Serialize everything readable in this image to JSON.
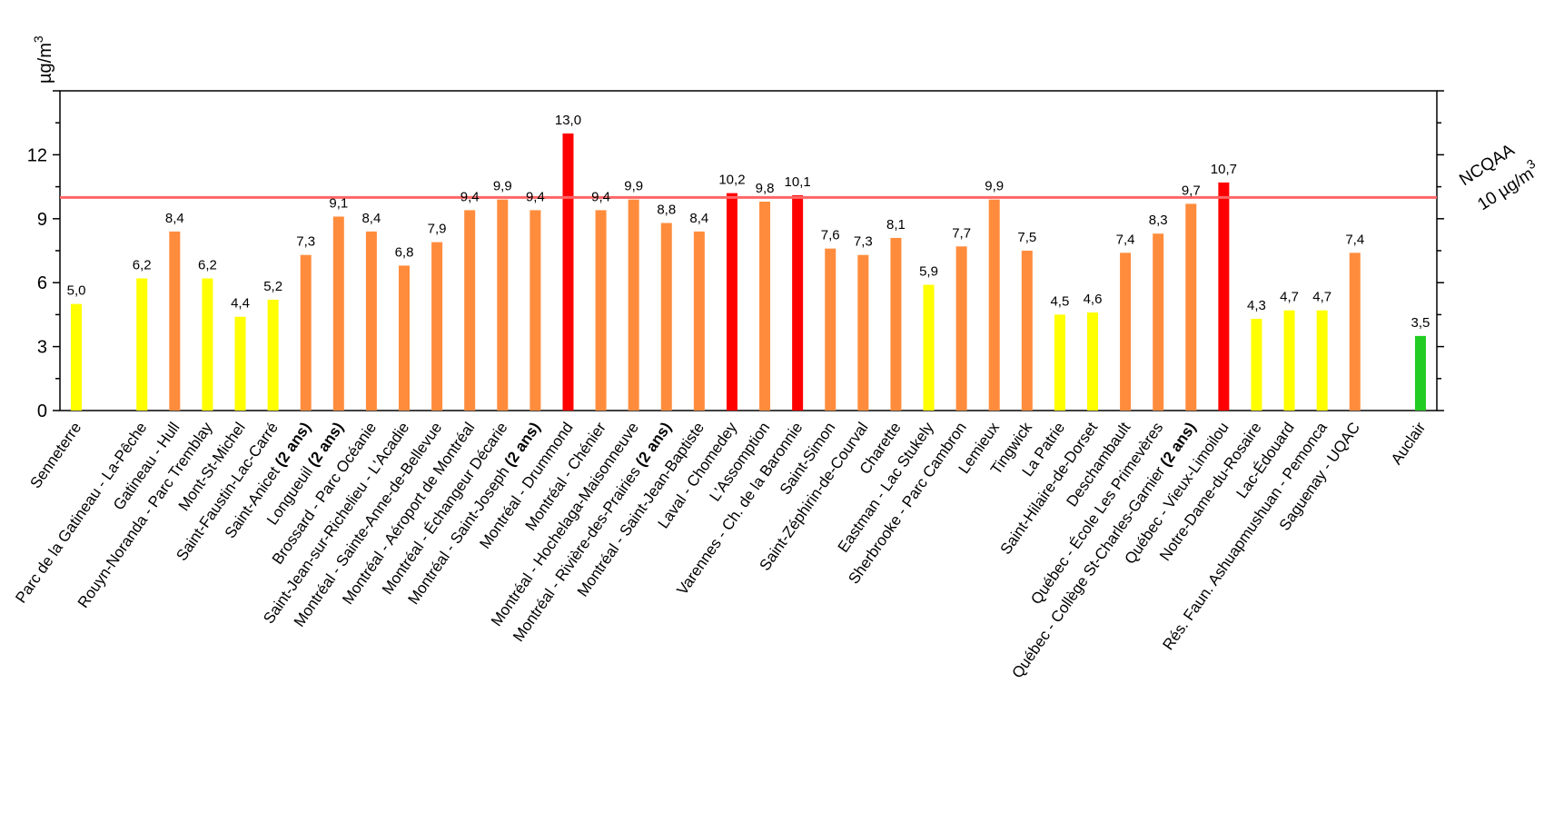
{
  "chart_data": {
    "type": "bar",
    "ylabel": "µg/m",
    "ylabel_sup": "3",
    "ylim": [
      0,
      15
    ],
    "yticks": [
      "0",
      "3",
      "6",
      "9",
      "12"
    ],
    "reference_line": {
      "value": 10,
      "color": "#ff6666",
      "label1": "NCQAA",
      "label2": "10 µg/m",
      "label2_sup": "3"
    },
    "colors": {
      "yellow": "#ffff00",
      "orange": "#ff8c3c",
      "red": "#ff0000",
      "green": "#22cc22"
    },
    "categories": [
      {
        "name": "Senneterre",
        "value": 5.0,
        "label": "5,0",
        "color": "yellow"
      },
      {
        "name": "",
        "value": null,
        "label": "",
        "color": ""
      },
      {
        "name": "Parc de la Gatineau - La-Pêche",
        "value": 6.2,
        "label": "6,2",
        "color": "yellow"
      },
      {
        "name": "Gatineau - Hull",
        "value": 8.4,
        "label": "8,4",
        "color": "orange"
      },
      {
        "name": "Rouyn-Noranda - Parc Tremblay",
        "value": 6.2,
        "label": "6,2",
        "color": "yellow"
      },
      {
        "name": "Mont-St-Michel",
        "value": 4.4,
        "label": "4,4",
        "color": "yellow"
      },
      {
        "name": "Saint-Faustin-Lac-Carré",
        "value": 5.2,
        "label": "5,2",
        "color": "yellow"
      },
      {
        "name": "Saint-Anicet",
        "suffix": "(2 ans)",
        "value": 7.3,
        "label": "7,3",
        "color": "orange"
      },
      {
        "name": "Longueuil",
        "suffix": "(2 ans)",
        "value": 9.1,
        "label": "9,1",
        "color": "orange"
      },
      {
        "name": "Brossard - Parc Océanie",
        "value": 8.4,
        "label": "8,4",
        "color": "orange"
      },
      {
        "name": "Saint-Jean-sur-Richelieu - L'Acadie",
        "value": 6.8,
        "label": "6,8",
        "color": "orange"
      },
      {
        "name": "Montréal - Sainte-Anne-de-Bellevue",
        "value": 7.9,
        "label": "7,9",
        "color": "orange"
      },
      {
        "name": "Montréal - Aéroport de Montréal",
        "value": 9.4,
        "label": "9,4",
        "color": "orange"
      },
      {
        "name": "Montréal - Échangeur Décarie",
        "value": 9.9,
        "label": "9,9",
        "color": "orange"
      },
      {
        "name": "Montréal - Saint-Joseph",
        "suffix": "(2 ans)",
        "value": 9.4,
        "label": "9,4",
        "color": "orange"
      },
      {
        "name": "Montréal - Drummond",
        "value": 13.0,
        "label": "13,0",
        "color": "red"
      },
      {
        "name": "Montréal - Chénier",
        "value": 9.4,
        "label": "9,4",
        "color": "orange"
      },
      {
        "name": "Montréal - Hochelaga-Maisonneuve",
        "value": 9.9,
        "label": "9,9",
        "color": "orange"
      },
      {
        "name": "Montréal - Rivière-des-Prairies",
        "suffix": "(2 ans)",
        "value": 8.8,
        "label": "8,8",
        "color": "orange"
      },
      {
        "name": "Montréal - Saint-Jean-Baptiste",
        "value": 8.4,
        "label": "8,4",
        "color": "orange"
      },
      {
        "name": "Laval - Chomedey",
        "value": 10.2,
        "label": "10,2",
        "color": "red"
      },
      {
        "name": "L'Assomption",
        "value": 9.8,
        "label": "9,8",
        "color": "orange"
      },
      {
        "name": "Varennes - Ch. de la Baronnie",
        "value": 10.1,
        "label": "10,1",
        "color": "red"
      },
      {
        "name": "Saint-Simon",
        "value": 7.6,
        "label": "7,6",
        "color": "orange"
      },
      {
        "name": "Saint-Zéphirin-de-Courval",
        "value": 7.3,
        "label": "7,3",
        "color": "orange"
      },
      {
        "name": "Charette",
        "value": 8.1,
        "label": "8,1",
        "color": "orange"
      },
      {
        "name": "Eastman - Lac Stukely",
        "value": 5.9,
        "label": "5,9",
        "color": "yellow"
      },
      {
        "name": "Sherbrooke - Parc Cambron",
        "value": 7.7,
        "label": "7,7",
        "color": "orange"
      },
      {
        "name": "Lemieux",
        "value": 9.9,
        "label": "9,9",
        "color": "orange"
      },
      {
        "name": "Tingwick",
        "value": 7.5,
        "label": "7,5",
        "color": "orange"
      },
      {
        "name": "La Patrie",
        "value": 4.5,
        "label": "4,5",
        "color": "yellow"
      },
      {
        "name": "Saint-Hilaire-de-Dorset",
        "value": 4.6,
        "label": "4,6",
        "color": "yellow"
      },
      {
        "name": "Deschambault",
        "value": 7.4,
        "label": "7,4",
        "color": "orange"
      },
      {
        "name": "Québec - École Les Primevères",
        "value": 8.3,
        "label": "8,3",
        "color": "orange"
      },
      {
        "name": "Québec - Collège St-Charles-Garnier",
        "suffix": "(2 ans)",
        "value": 9.7,
        "label": "9,7",
        "color": "orange"
      },
      {
        "name": "Québec - Vieux-Limoilou",
        "value": 10.7,
        "label": "10,7",
        "color": "red"
      },
      {
        "name": "Notre-Dame-du-Rosaire",
        "value": 4.3,
        "label": "4,3",
        "color": "yellow"
      },
      {
        "name": "Lac-Édouard",
        "value": 4.7,
        "label": "4,7",
        "color": "yellow"
      },
      {
        "name": "Rés. Faun. Ashuapmushuan - Pemonca",
        "value": 4.7,
        "label": "4,7",
        "color": "yellow"
      },
      {
        "name": "Saguenay - UQAC",
        "value": 7.4,
        "label": "7,4",
        "color": "orange"
      },
      {
        "name": "",
        "value": null,
        "label": "",
        "color": ""
      },
      {
        "name": "Auclair",
        "value": 3.5,
        "label": "3,5",
        "color": "green"
      }
    ]
  }
}
